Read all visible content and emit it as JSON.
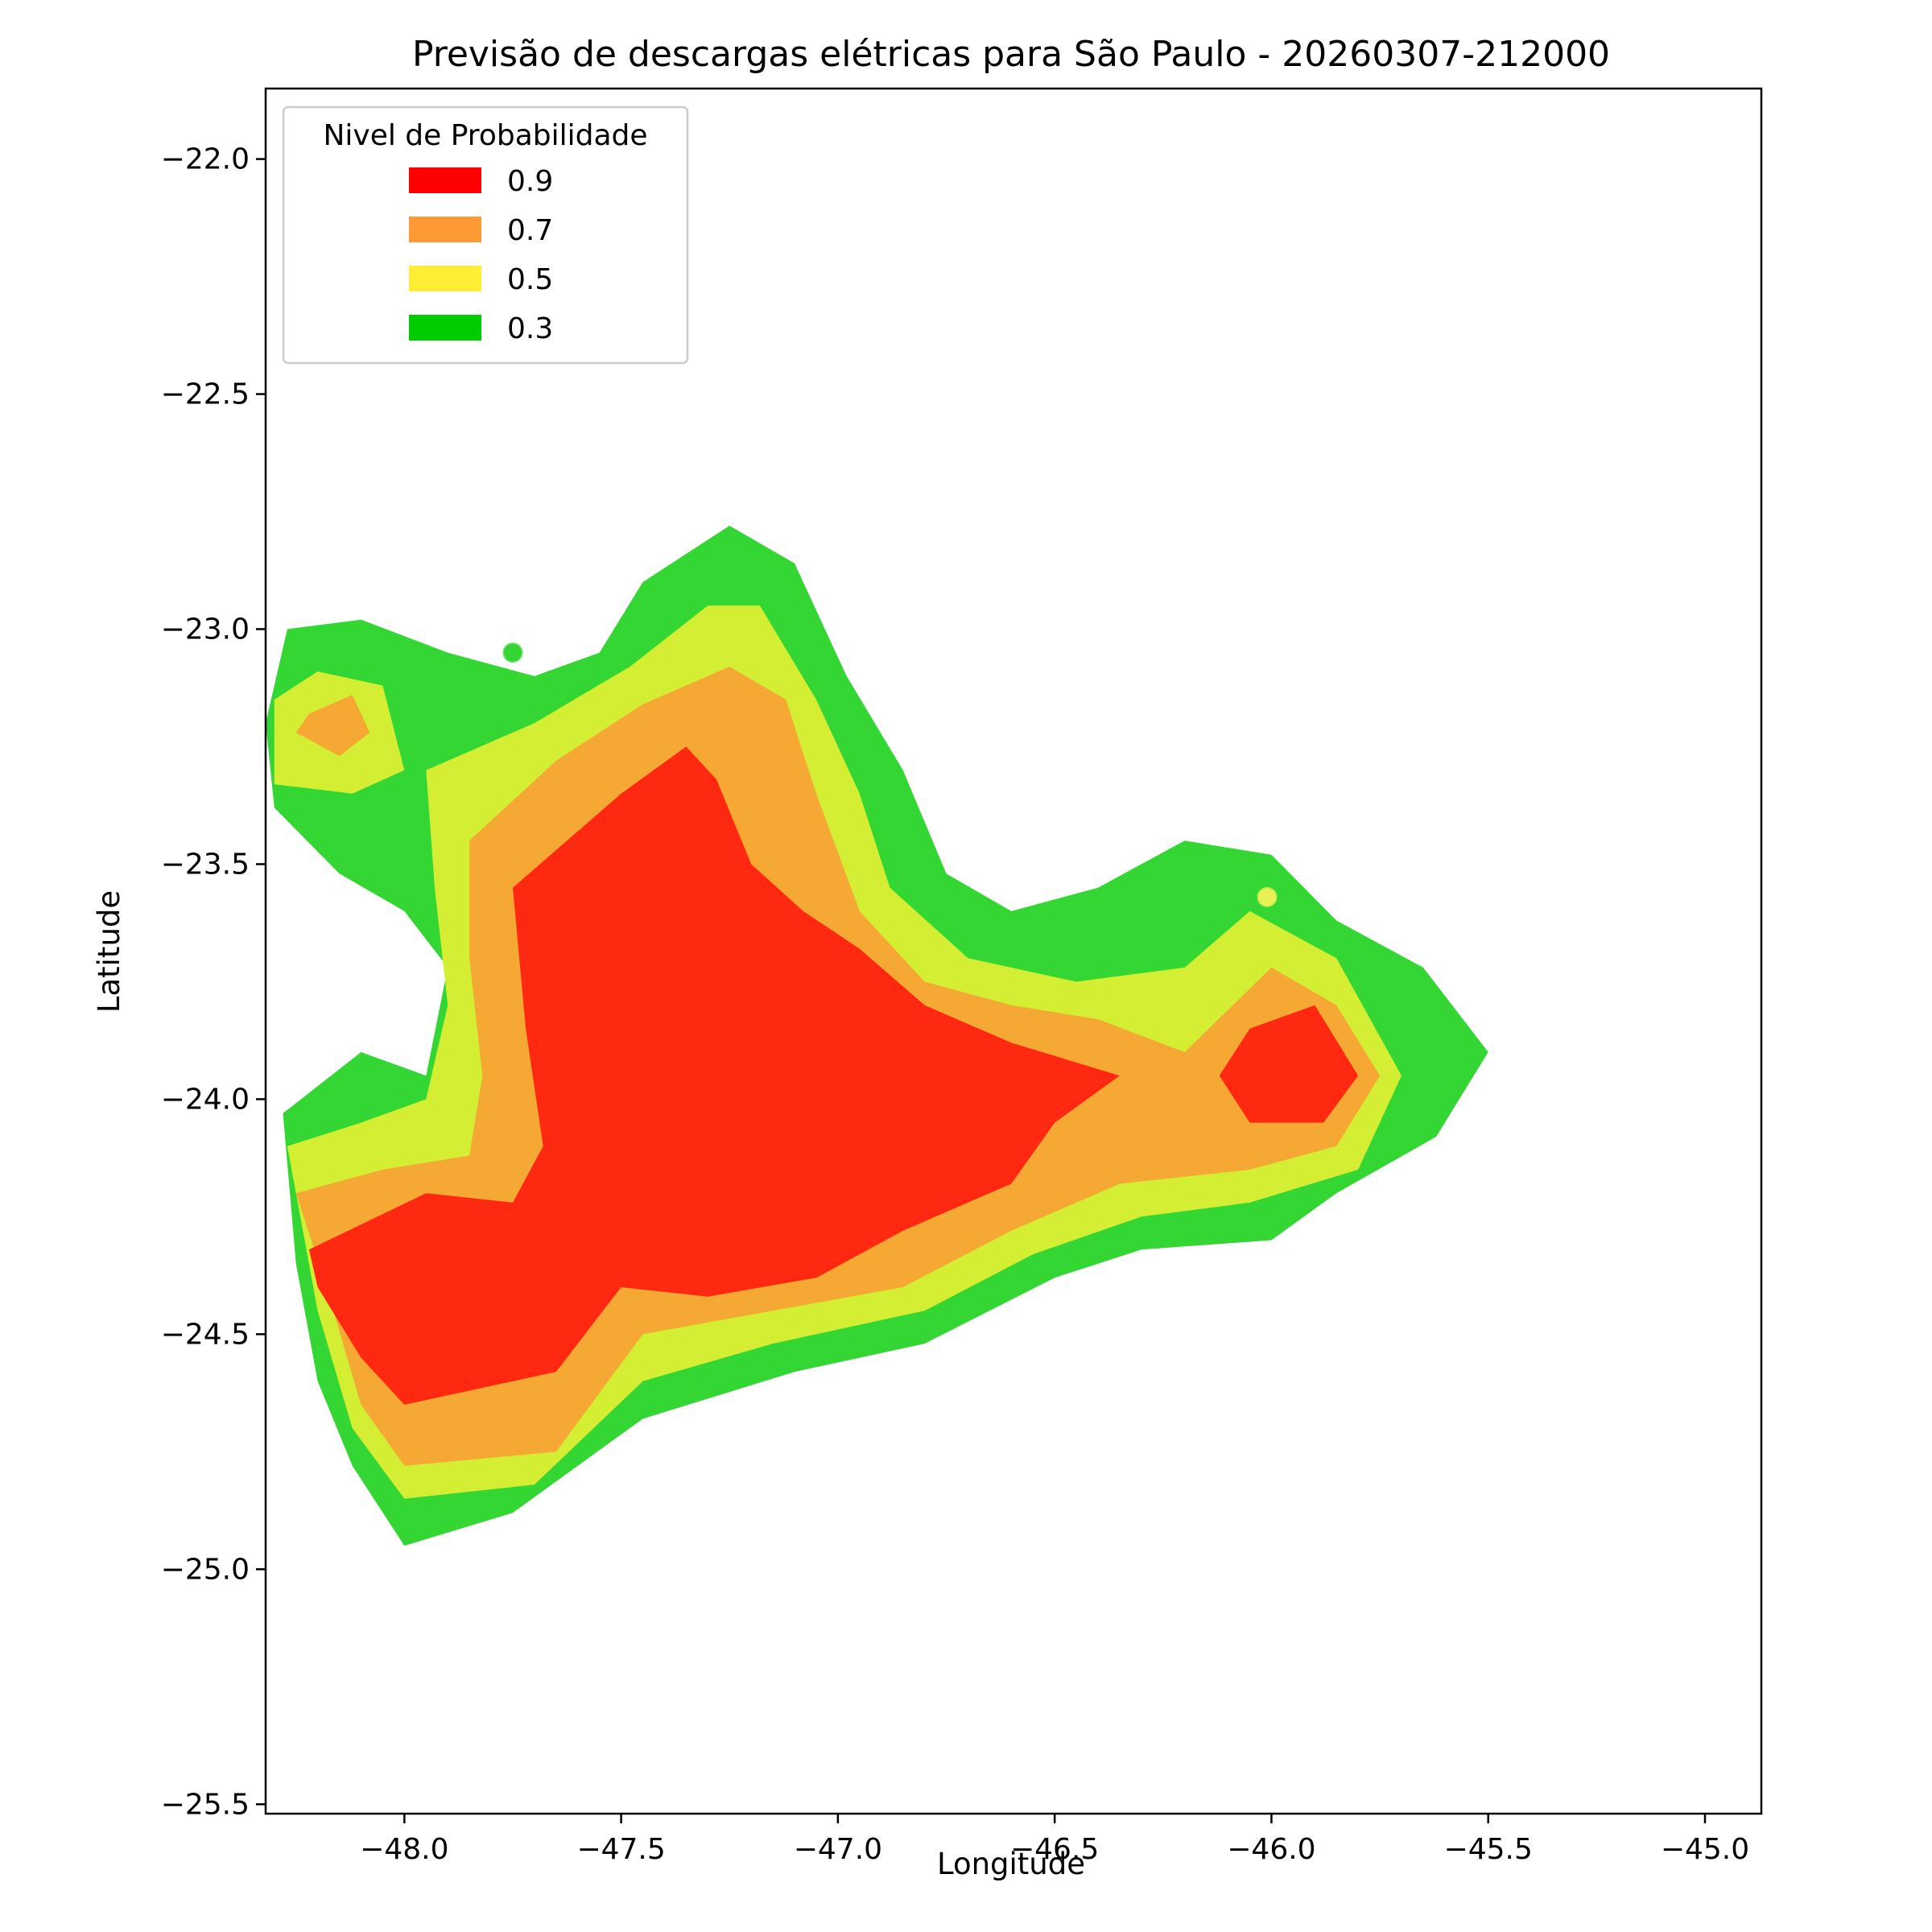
{
  "chart_data": {
    "type": "contour",
    "title": "Previsão de descargas elétricas para São Paulo - 20260307-212000",
    "xlabel": "Longitude",
    "ylabel": "Latitude",
    "xlim": [
      -48.32,
      -44.87
    ],
    "ylim": [
      -25.52,
      -21.85
    ],
    "xticks": [
      -48.0,
      -47.5,
      -47.0,
      -46.5,
      -46.0,
      -45.5,
      -45.0
    ],
    "xtick_labels": [
      "−48.0",
      "−47.5",
      "−47.0",
      "−46.5",
      "−46.0",
      "−45.5",
      "−45.0"
    ],
    "yticks": [
      -22.0,
      -22.5,
      -23.0,
      -23.5,
      -24.0,
      -24.5,
      -25.0,
      -25.5
    ],
    "ytick_labels": [
      "−22.0",
      "−22.5",
      "−23.0",
      "−23.5",
      "−24.0",
      "−24.5",
      "−25.0",
      "−25.5"
    ],
    "legend": {
      "title": "Nivel de Probabilidade",
      "placement": "upper-left",
      "entries": [
        {
          "label": "0.9",
          "color": "#ff0000"
        },
        {
          "label": "0.7",
          "color": "#ff9933"
        },
        {
          "label": "0.5",
          "color": "#ffee33"
        },
        {
          "label": "0.3",
          "color": "#00cc00"
        }
      ]
    },
    "levels": [
      {
        "level": 0.3,
        "color": "#33d633",
        "polygons": [
          [
            [
              -48.27,
              -23.0
            ],
            [
              -48.1,
              -22.98
            ],
            [
              -47.9,
              -23.05
            ],
            [
              -47.7,
              -23.1
            ],
            [
              -47.55,
              -23.05
            ],
            [
              -47.45,
              -22.9
            ],
            [
              -47.25,
              -22.78
            ],
            [
              -47.1,
              -22.86
            ],
            [
              -46.98,
              -23.1
            ],
            [
              -46.85,
              -23.3
            ],
            [
              -46.75,
              -23.52
            ],
            [
              -46.6,
              -23.6
            ],
            [
              -46.4,
              -23.55
            ],
            [
              -46.2,
              -23.45
            ],
            [
              -46.0,
              -23.48
            ],
            [
              -45.85,
              -23.62
            ],
            [
              -45.65,
              -23.72
            ],
            [
              -45.5,
              -23.9
            ],
            [
              -45.62,
              -24.08
            ],
            [
              -45.85,
              -24.2
            ],
            [
              -46.0,
              -24.3
            ],
            [
              -46.3,
              -24.32
            ],
            [
              -46.5,
              -24.38
            ],
            [
              -46.8,
              -24.52
            ],
            [
              -47.1,
              -24.58
            ],
            [
              -47.45,
              -24.68
            ],
            [
              -47.75,
              -24.88
            ],
            [
              -48.0,
              -24.95
            ],
            [
              -48.12,
              -24.78
            ],
            [
              -48.2,
              -24.6
            ],
            [
              -48.25,
              -24.35
            ],
            [
              -48.28,
              -24.03
            ],
            [
              -48.1,
              -23.9
            ],
            [
              -47.95,
              -23.95
            ],
            [
              -47.9,
              -23.72
            ],
            [
              -48.0,
              -23.6
            ],
            [
              -48.15,
              -23.52
            ],
            [
              -48.3,
              -23.38
            ],
            [
              -48.32,
              -23.2
            ]
          ]
        ]
      },
      {
        "level": 0.5,
        "color": "#d4ee33",
        "polygons": [
          [
            [
              -48.3,
              -23.15
            ],
            [
              -48.2,
              -23.09
            ],
            [
              -48.05,
              -23.12
            ],
            [
              -48.0,
              -23.3
            ],
            [
              -48.12,
              -23.35
            ],
            [
              -48.3,
              -23.33
            ]
          ],
          [
            [
              -47.95,
              -23.3
            ],
            [
              -47.7,
              -23.2
            ],
            [
              -47.48,
              -23.08
            ],
            [
              -47.3,
              -22.95
            ],
            [
              -47.18,
              -22.95
            ],
            [
              -47.05,
              -23.15
            ],
            [
              -46.95,
              -23.35
            ],
            [
              -46.88,
              -23.55
            ],
            [
              -46.7,
              -23.7
            ],
            [
              -46.45,
              -23.75
            ],
            [
              -46.2,
              -23.72
            ],
            [
              -46.05,
              -23.6
            ],
            [
              -45.85,
              -23.7
            ],
            [
              -45.7,
              -23.95
            ],
            [
              -45.8,
              -24.15
            ],
            [
              -46.05,
              -24.22
            ],
            [
              -46.3,
              -24.25
            ],
            [
              -46.55,
              -24.33
            ],
            [
              -46.8,
              -24.45
            ],
            [
              -47.15,
              -24.52
            ],
            [
              -47.45,
              -24.6
            ],
            [
              -47.7,
              -24.82
            ],
            [
              -48.0,
              -24.85
            ],
            [
              -48.12,
              -24.7
            ],
            [
              -48.2,
              -24.45
            ],
            [
              -48.27,
              -24.1
            ],
            [
              -48.1,
              -24.05
            ],
            [
              -47.95,
              -24.0
            ],
            [
              -47.9,
              -23.8
            ],
            [
              -47.93,
              -23.55
            ]
          ]
        ]
      },
      {
        "level": 0.7,
        "color": "#f5a833",
        "polygons": [
          [
            [
              -48.22,
              -23.18
            ],
            [
              -48.12,
              -23.14
            ],
            [
              -48.08,
              -23.22
            ],
            [
              -48.15,
              -23.27
            ],
            [
              -48.25,
              -23.22
            ]
          ],
          [
            [
              -47.85,
              -23.45
            ],
            [
              -47.65,
              -23.28
            ],
            [
              -47.45,
              -23.16
            ],
            [
              -47.25,
              -23.08
            ],
            [
              -47.12,
              -23.15
            ],
            [
              -47.05,
              -23.35
            ],
            [
              -46.95,
              -23.6
            ],
            [
              -46.8,
              -23.75
            ],
            [
              -46.6,
              -23.8
            ],
            [
              -46.4,
              -23.83
            ],
            [
              -46.2,
              -23.9
            ],
            [
              -46.0,
              -23.72
            ],
            [
              -45.85,
              -23.8
            ],
            [
              -45.75,
              -23.95
            ],
            [
              -45.85,
              -24.1
            ],
            [
              -46.05,
              -24.15
            ],
            [
              -46.35,
              -24.18
            ],
            [
              -46.6,
              -24.28
            ],
            [
              -46.85,
              -24.4
            ],
            [
              -47.15,
              -24.45
            ],
            [
              -47.45,
              -24.5
            ],
            [
              -47.65,
              -24.75
            ],
            [
              -48.0,
              -24.78
            ],
            [
              -48.1,
              -24.65
            ],
            [
              -48.18,
              -24.4
            ],
            [
              -48.25,
              -24.2
            ],
            [
              -48.05,
              -24.15
            ],
            [
              -47.85,
              -24.12
            ],
            [
              -47.82,
              -23.95
            ],
            [
              -47.85,
              -23.7
            ]
          ]
        ]
      },
      {
        "level": 0.9,
        "color": "#ff2810",
        "polygons": [
          [
            [
              -47.75,
              -23.55
            ],
            [
              -47.5,
              -23.35
            ],
            [
              -47.35,
              -23.25
            ],
            [
              -47.28,
              -23.32
            ],
            [
              -47.2,
              -23.5
            ],
            [
              -47.08,
              -23.6
            ],
            [
              -46.95,
              -23.68
            ],
            [
              -46.8,
              -23.8
            ],
            [
              -46.6,
              -23.88
            ],
            [
              -46.35,
              -23.95
            ],
            [
              -46.5,
              -24.05
            ],
            [
              -46.6,
              -24.18
            ],
            [
              -46.85,
              -24.28
            ],
            [
              -47.05,
              -24.38
            ],
            [
              -47.3,
              -24.42
            ],
            [
              -47.5,
              -24.4
            ],
            [
              -47.65,
              -24.58
            ],
            [
              -48.0,
              -24.65
            ],
            [
              -48.1,
              -24.55
            ],
            [
              -48.2,
              -24.4
            ],
            [
              -48.22,
              -24.32
            ],
            [
              -47.95,
              -24.2
            ],
            [
              -47.75,
              -24.22
            ],
            [
              -47.68,
              -24.1
            ],
            [
              -47.72,
              -23.85
            ]
          ],
          [
            [
              -46.05,
              -23.85
            ],
            [
              -45.9,
              -23.8
            ],
            [
              -45.8,
              -23.95
            ],
            [
              -45.88,
              -24.05
            ],
            [
              -46.05,
              -24.05
            ],
            [
              -46.12,
              -23.95
            ]
          ]
        ]
      }
    ],
    "markers": [
      {
        "lon": -47.75,
        "lat": -23.05,
        "color": "#33d633"
      },
      {
        "lon": -47.06,
        "lat": -23.64,
        "color": "#ff2810"
      },
      {
        "lon": -46.01,
        "lat": -23.57,
        "color": "#e8f055"
      }
    ]
  }
}
